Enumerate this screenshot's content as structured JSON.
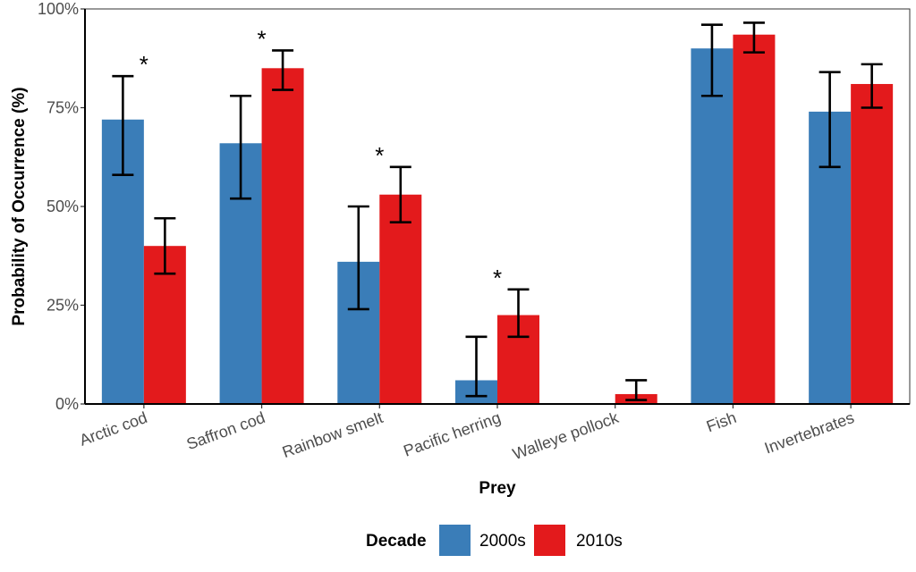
{
  "chart_data": {
    "type": "bar",
    "xlabel": "Prey",
    "ylabel": "Probability of Occurrence (%)",
    "ylim": [
      0,
      100
    ],
    "yticks": [
      0,
      25,
      50,
      75,
      100
    ],
    "ytick_labels": [
      "0%",
      "25%",
      "50%",
      "75%",
      "100%"
    ],
    "categories": [
      "Arctic cod",
      "Saffron cod",
      "Rainbow smelt",
      "Pacific herring",
      "Walleye pollock",
      "Fish",
      "Invertebrates"
    ],
    "significance_marker": "*",
    "significant": [
      true,
      true,
      true,
      true,
      false,
      false,
      false
    ],
    "legend": {
      "title": "Decade",
      "position": "bottom"
    },
    "series": [
      {
        "name": "2000s",
        "color": "#3a7db8",
        "values": [
          72,
          66,
          36,
          6,
          0,
          90,
          74
        ],
        "error_low": [
          58,
          52,
          24,
          2,
          0,
          78,
          60
        ],
        "error_high": [
          83,
          78,
          50,
          17,
          0,
          96,
          84
        ]
      },
      {
        "name": "2010s",
        "color": "#e31a1c",
        "values": [
          40,
          85,
          53,
          22.5,
          2.5,
          93.5,
          81
        ],
        "error_low": [
          33,
          79.5,
          46,
          17,
          1,
          89,
          75
        ],
        "error_high": [
          47,
          89.5,
          60,
          29,
          6,
          96.5,
          86
        ]
      }
    ]
  }
}
